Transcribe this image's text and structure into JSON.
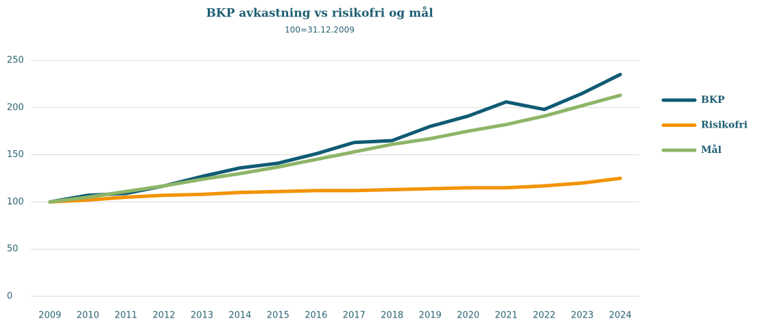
{
  "chart_data": {
    "type": "line",
    "title": "BKP avkastning vs risikofri og mål",
    "subtitle": "100=31.12.2009",
    "categories": [
      "2009",
      "2010",
      "2011",
      "2012",
      "2013",
      "2014",
      "2015",
      "2016",
      "2017",
      "2018",
      "2019",
      "2020",
      "2021",
      "2022",
      "2023",
      "2024"
    ],
    "series": [
      {
        "name": "BKP",
        "color": "#0f5a74",
        "values": [
          100,
          107,
          109,
          117,
          127,
          136,
          141,
          151,
          163,
          165,
          180,
          191,
          206,
          198,
          215,
          235
        ]
      },
      {
        "name": "Risikofri",
        "color": "#f39200",
        "values": [
          100,
          102,
          105,
          107,
          108,
          110,
          111,
          112,
          112,
          113,
          114,
          115,
          115,
          117,
          120,
          125
        ]
      },
      {
        "name": "Mål",
        "color": "#8db568",
        "values": [
          100,
          105,
          111,
          117,
          124,
          130,
          137,
          145,
          153,
          161,
          167,
          175,
          182,
          191,
          202,
          213
        ]
      }
    ],
    "ylim": [
      0,
      250
    ],
    "yticks": [
      0,
      50,
      100,
      150,
      200,
      250
    ],
    "grid": true,
    "legend": "right"
  }
}
